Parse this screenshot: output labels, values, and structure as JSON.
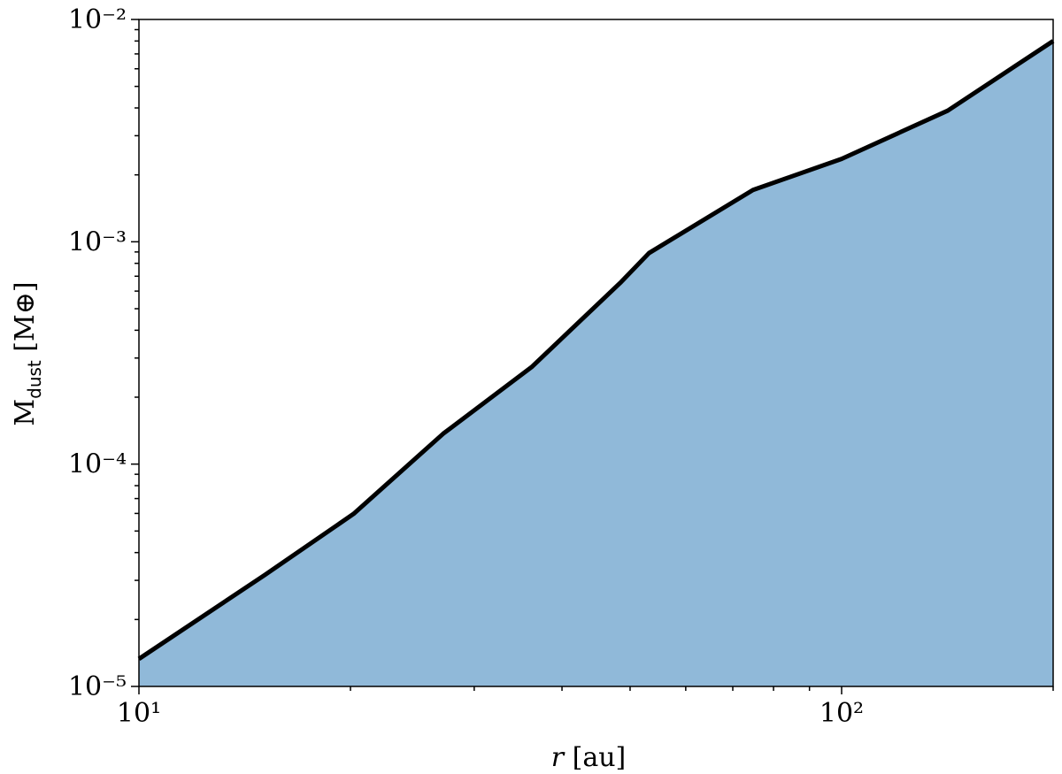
{
  "chart_data": {
    "type": "area",
    "xlabel": {
      "var": "r",
      "unit": "[au]"
    },
    "ylabel": {
      "main": "M",
      "sub": "dust",
      "unit": "[M⊕]"
    },
    "x": [
      10,
      15.1,
      20.2,
      27.1,
      36.2,
      48.4,
      53.2,
      74.8,
      100,
      141.6,
      200
    ],
    "values": [
      1.33e-05,
      3.17e-05,
      5.97e-05,
      0.000137,
      0.000273,
      0.000653,
      0.00089,
      0.00171,
      0.00236,
      0.00389,
      0.008
    ],
    "fill": "#90b9d9",
    "line_color": "#000000",
    "xscale": "log",
    "yscale": "log",
    "xlim": [
      10,
      200
    ],
    "ylim": [
      1e-05,
      0.01
    ],
    "xticks": [
      {
        "value": 10,
        "label": "10¹"
      },
      {
        "value": 100,
        "label": "10²"
      }
    ],
    "xminorticks": [
      20,
      30,
      40,
      50,
      60,
      70,
      80,
      90,
      200
    ],
    "yticks": [
      {
        "value": 1e-05,
        "label": "10⁻⁵"
      },
      {
        "value": 0.0001,
        "label": "10⁻⁴"
      },
      {
        "value": 0.001,
        "label": "10⁻³"
      },
      {
        "value": 0.01,
        "label": "10⁻²"
      }
    ],
    "yminorticks": [
      2e-05,
      3e-05,
      4e-05,
      5e-05,
      6e-05,
      7e-05,
      8e-05,
      9e-05,
      0.0002,
      0.0003,
      0.0004,
      0.0005,
      0.0006,
      0.0007,
      0.0008,
      0.0009,
      0.002,
      0.003,
      0.004,
      0.005,
      0.006,
      0.007,
      0.008,
      0.009
    ],
    "grid": false
  }
}
